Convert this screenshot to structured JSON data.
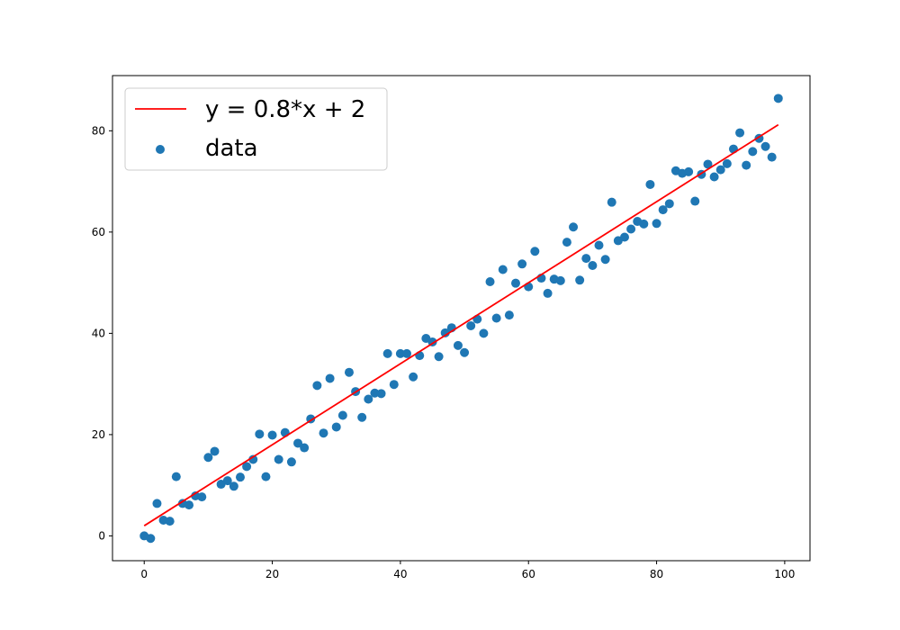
{
  "chart_data": {
    "type": "scatter",
    "title": "",
    "xlabel": "",
    "ylabel": "",
    "xlim": [
      -4.95,
      103.95
    ],
    "ylim": [
      -4.9,
      90.9
    ],
    "xticks": [
      0,
      20,
      40,
      60,
      80,
      100
    ],
    "yticks": [
      0,
      20,
      40,
      60,
      80
    ],
    "xtick_labels": [
      "0",
      "20",
      "40",
      "60",
      "80",
      "100"
    ],
    "ytick_labels": [
      "0",
      "20",
      "40",
      "60",
      "80"
    ],
    "grid": false,
    "legend_position": "top-left",
    "series": [
      {
        "name": "y = 0.8*x + 2",
        "kind": "line",
        "color": "#ff0000",
        "x": [
          0,
          99
        ],
        "y": [
          2,
          81.2
        ]
      },
      {
        "name": "data",
        "kind": "scatter",
        "color": "#1f77b4",
        "x": [
          0,
          1,
          2,
          3,
          4,
          5,
          6,
          7,
          8,
          9,
          10,
          11,
          12,
          13,
          14,
          15,
          16,
          17,
          18,
          19,
          20,
          21,
          22,
          23,
          24,
          25,
          26,
          27,
          28,
          29,
          30,
          31,
          32,
          33,
          34,
          35,
          36,
          37,
          38,
          39,
          40,
          41,
          42,
          43,
          44,
          45,
          46,
          47,
          48,
          49,
          50,
          51,
          52,
          53,
          54,
          55,
          56,
          57,
          58,
          59,
          60,
          61,
          62,
          63,
          64,
          65,
          66,
          67,
          68,
          69,
          70,
          71,
          72,
          73,
          74,
          75,
          76,
          77,
          78,
          79,
          80,
          81,
          82,
          83,
          84,
          85,
          86,
          87,
          88,
          89,
          90,
          91,
          92,
          93,
          94,
          95,
          96,
          97,
          98,
          99
        ],
        "y": [
          0,
          -0.5,
          6.4,
          3.1,
          2.9,
          11.7,
          6.4,
          6.1,
          7.9,
          7.7,
          15.5,
          16.7,
          10.2,
          10.9,
          9.8,
          11.6,
          13.7,
          15.1,
          20.1,
          11.7,
          19.9,
          15.1,
          20.4,
          14.6,
          18.3,
          17.4,
          23.1,
          29.7,
          20.3,
          31.1,
          21.5,
          23.8,
          32.3,
          28.5,
          23.4,
          27.0,
          28.2,
          28.1,
          36.0,
          29.9,
          36.0,
          36.0,
          31.4,
          35.6,
          39.0,
          38.3,
          35.4,
          40.1,
          41.1,
          37.6,
          36.2,
          41.5,
          42.8,
          40.0,
          50.2,
          43.0,
          52.6,
          43.6,
          49.9,
          53.7,
          49.2,
          56.2,
          50.9,
          47.9,
          50.7,
          50.4,
          58.0,
          61.0,
          50.5,
          54.8,
          53.4,
          57.4,
          54.6,
          65.9,
          58.3,
          59.0,
          60.6,
          62.1,
          61.6,
          69.4,
          61.7,
          64.4,
          65.6,
          72.1,
          71.6,
          71.9,
          66.1,
          71.4,
          73.4,
          70.9,
          72.3,
          73.5,
          76.4,
          79.6,
          73.2,
          75.9,
          78.5,
          76.9,
          74.8,
          86.4
        ]
      }
    ]
  }
}
